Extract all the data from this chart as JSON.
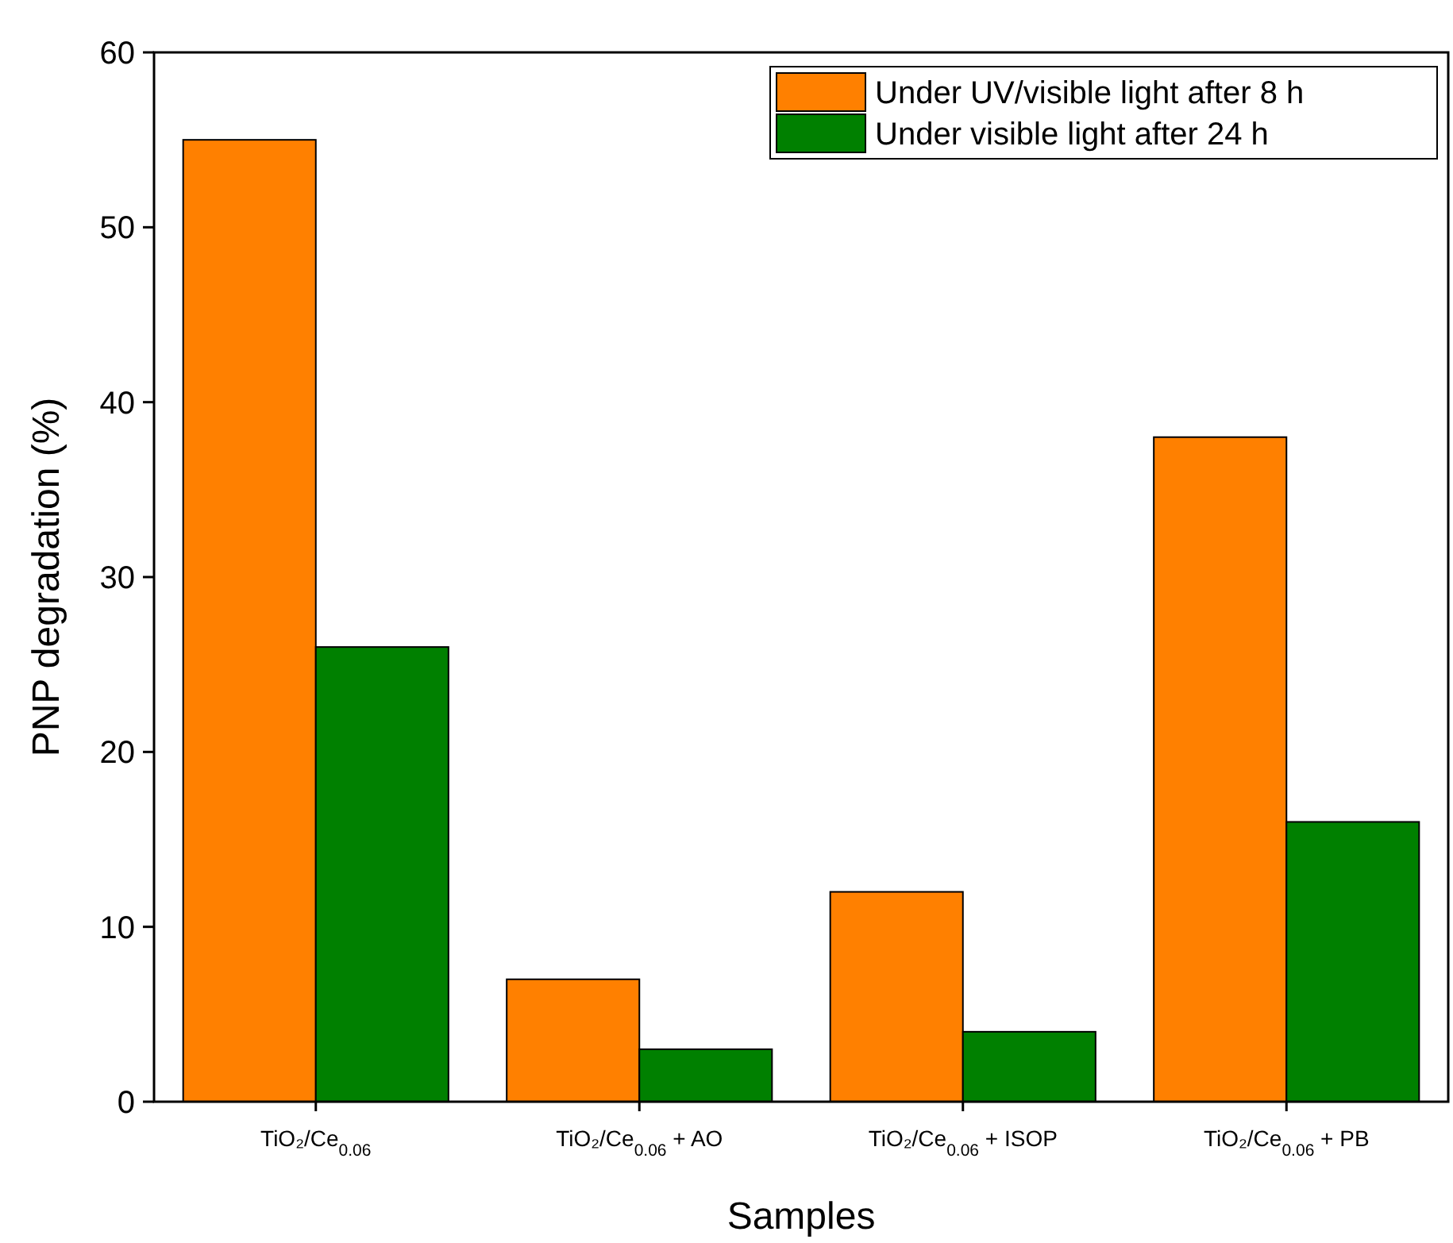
{
  "chart_data": {
    "type": "bar",
    "xlabel": "Samples",
    "ylabel": "PNP degradation (%)",
    "categories": [
      "TiO₂/Ce$_{0.06}$",
      "TiO₂/Ce$_{0.06}$ + AO",
      "TiO₂/Ce$_{0.06}$ + ISOP",
      "TiO₂/Ce$_{0.06}$ + PB"
    ],
    "series": [
      {
        "name": "Under UV/visible light after 8 h",
        "color": "#ff8000",
        "values": [
          55,
          7,
          12,
          38
        ]
      },
      {
        "name": "Under visible light after 24 h",
        "color": "#008000",
        "values": [
          26,
          3,
          4,
          16
        ]
      }
    ],
    "ylim": [
      0,
      60
    ],
    "yticks": [
      0,
      10,
      20,
      30,
      40,
      50,
      60
    ],
    "grid": false,
    "legend": "top right"
  }
}
